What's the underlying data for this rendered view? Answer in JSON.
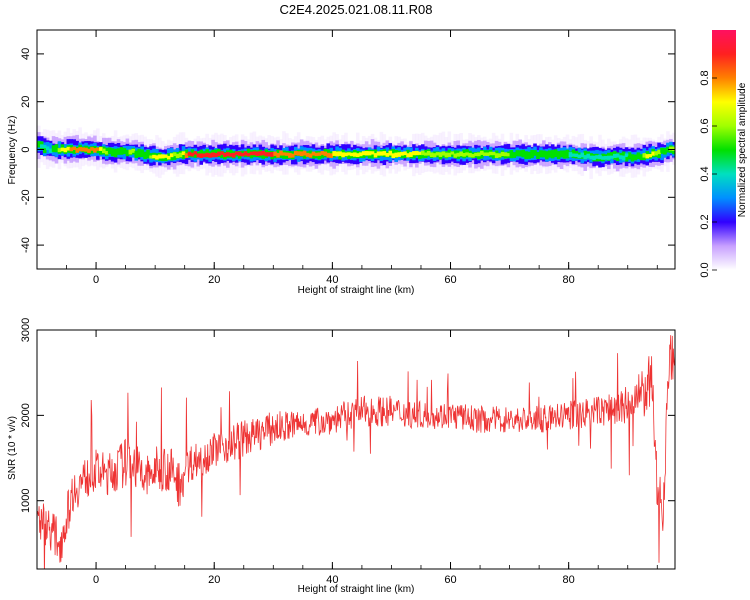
{
  "chart_data": [
    {
      "type": "heatmap",
      "title": "C2E4.2025.021.08.11.R08",
      "xlabel": "Height of straight line (km)",
      "ylabel": "Frequency (Hz)",
      "xlim": [
        -10,
        98
      ],
      "ylim": [
        -50,
        50
      ],
      "xticks": [
        "0",
        "20",
        "40",
        "60",
        "80"
      ],
      "yticks": [
        "40",
        "20",
        "0",
        "-20",
        "-40"
      ],
      "ridge": {
        "description_units": "km / Hz",
        "x": [
          -10,
          -8,
          -6,
          -4,
          -2,
          0,
          2,
          4,
          6,
          8,
          10,
          12,
          14,
          16,
          20,
          30,
          40,
          50,
          60,
          70,
          80,
          84,
          88,
          92,
          94,
          96,
          97
        ],
        "freq": [
          2,
          0,
          0,
          0,
          0,
          0,
          -1,
          -1,
          -1,
          -2,
          -3,
          -3,
          -2,
          -2,
          -2,
          -2,
          -2,
          -2,
          -2,
          -2,
          -2,
          -3,
          -3,
          -3,
          -2,
          -1,
          0
        ],
        "intensity": [
          0.55,
          0.4,
          0.7,
          0.85,
          0.9,
          0.85,
          0.6,
          0.5,
          0.65,
          0.5,
          0.75,
          0.8,
          0.6,
          0.95,
          0.95,
          0.9,
          0.8,
          0.75,
          0.65,
          0.6,
          0.5,
          0.45,
          0.45,
          0.55,
          0.8,
          0.5,
          0.6
        ]
      },
      "colorbar": {
        "label": "Normalized spectral amplitude",
        "ticks": [
          "0.0",
          "0.2",
          "0.4",
          "0.6",
          "0.8"
        ],
        "range": [
          0,
          1
        ]
      }
    },
    {
      "type": "line",
      "xlabel": "Height of straight line (km)",
      "ylabel": "SNR (10 * v/v)",
      "xlim": [
        -10,
        98
      ],
      "ylim": [
        200,
        3000
      ],
      "xticks": [
        "0",
        "20",
        "40",
        "60",
        "80"
      ],
      "yticks": [
        "3000",
        "2000",
        "1000"
      ],
      "color": "#ee3333",
      "series": [
        {
          "name": "SNR",
          "x": [
            -10,
            -8,
            -6,
            -4,
            -2,
            0,
            2,
            4,
            6,
            8,
            10,
            12,
            14,
            16,
            18,
            20,
            22,
            24,
            26,
            30,
            35,
            40,
            45,
            50,
            55,
            60,
            65,
            70,
            75,
            80,
            85,
            90,
            92,
            94,
            95,
            96,
            97
          ],
          "mean": [
            800,
            700,
            500,
            1100,
            1250,
            1350,
            1300,
            1400,
            1500,
            1250,
            1350,
            1400,
            1200,
            1450,
            1500,
            1600,
            1650,
            1700,
            1750,
            1850,
            1900,
            1950,
            2050,
            2050,
            2000,
            2000,
            1950,
            1950,
            1950,
            2000,
            2050,
            2100,
            2200,
            2400,
            1200,
            900,
            2700
          ],
          "spread": [
            250,
            250,
            250,
            250,
            250,
            250,
            250,
            280,
            300,
            280,
            280,
            300,
            300,
            220,
            220,
            200,
            220,
            250,
            200,
            200,
            170,
            170,
            180,
            180,
            160,
            160,
            160,
            160,
            160,
            170,
            180,
            250,
            300,
            350,
            300,
            300,
            300
          ]
        }
      ]
    }
  ]
}
